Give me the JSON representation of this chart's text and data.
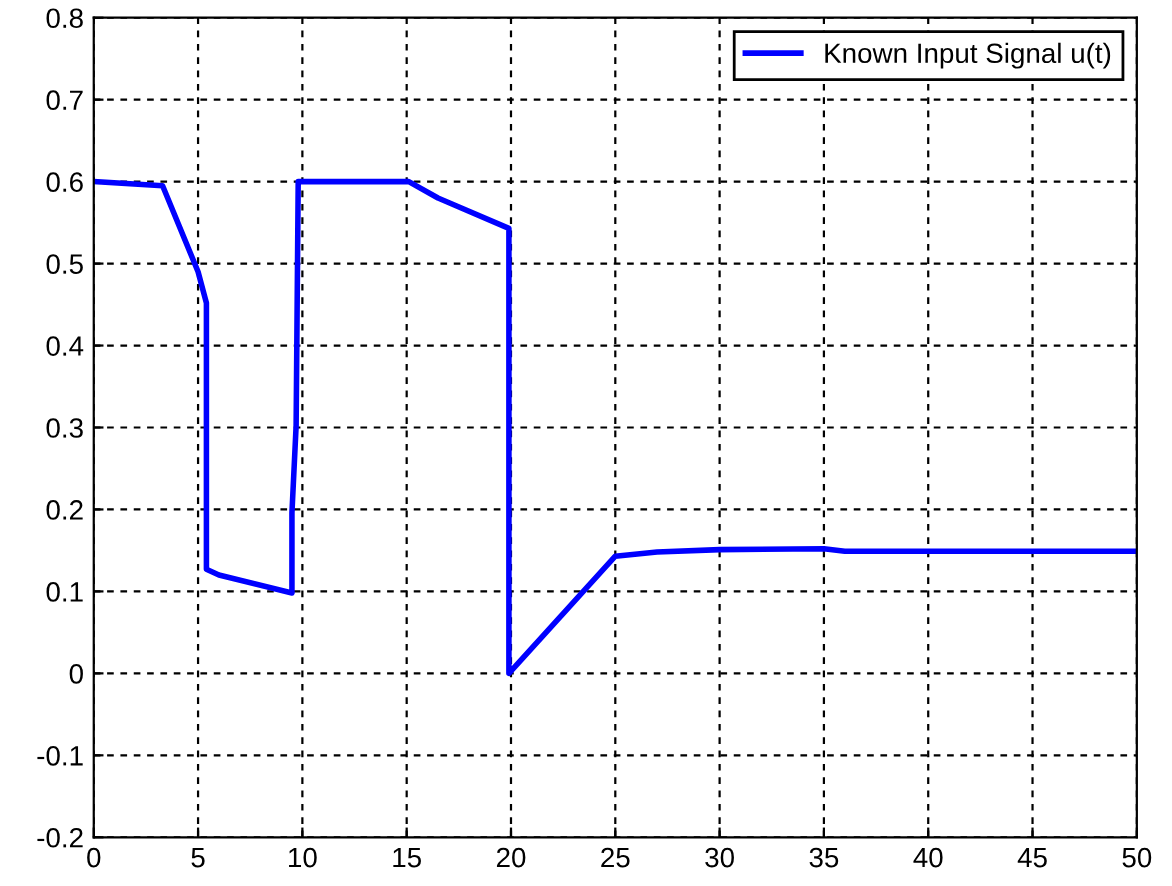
{
  "chart_data": {
    "type": "line",
    "xlim": [
      0,
      50
    ],
    "ylim": [
      -0.2,
      0.8
    ],
    "xticks": [
      0,
      5,
      10,
      15,
      20,
      25,
      30,
      35,
      40,
      45,
      50
    ],
    "yticks": [
      -0.2,
      -0.1,
      0,
      0.1,
      0.2,
      0.3,
      0.4,
      0.5,
      0.6,
      0.7,
      0.8
    ],
    "grid": true,
    "legend": "top right",
    "line_style": "solid",
    "marker": "none",
    "series": [
      {
        "name": "Known Input Signal u(t)",
        "color": "#0000ff",
        "x": [
          0,
          3.3,
          5.0,
          5.4,
          5.4,
          6.0,
          9.5,
          9.5,
          9.7,
          9.8,
          15.1,
          16.5,
          19.9,
          19.9,
          25.0,
          27.0,
          30.0,
          35.0,
          36.0,
          50.0
        ],
        "values": [
          0.6,
          0.595,
          0.49,
          0.452,
          0.127,
          0.12,
          0.098,
          0.196,
          0.302,
          0.6,
          0.6,
          0.58,
          0.543,
          0.0,
          0.143,
          0.148,
          0.151,
          0.152,
          0.149,
          0.149
        ]
      }
    ]
  }
}
